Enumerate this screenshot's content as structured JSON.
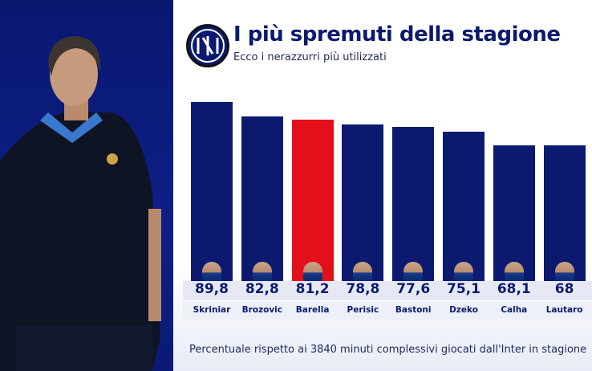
{
  "header": {
    "title": "I più spremuti della stagione",
    "subtitle": "Ecco i nerazzurri più utilizzati",
    "logo_text": "IM"
  },
  "footer": "Percentuale rispetto ai 3840 minuti complessivi giocati dall'Inter in stagione",
  "colors": {
    "bar": "#0b1a6e",
    "highlight": "#e3101b",
    "background_left": "#0d1f86"
  },
  "chart_data": {
    "type": "bar",
    "categories": [
      "Skriniar",
      "Brozovic",
      "Barella",
      "Perisic",
      "Bastoni",
      "Dzeko",
      "Calha",
      "Lautaro"
    ],
    "values": [
      89.8,
      82.8,
      81.2,
      78.8,
      77.6,
      75.1,
      68.1,
      68
    ],
    "labels": [
      "89,8",
      "82,8",
      "81,2",
      "78,8",
      "77,6",
      "75,1",
      "68,1",
      "68"
    ],
    "highlighted": "Barella",
    "title": "I più spremuti della stagione",
    "xlabel": "",
    "ylabel": "",
    "ylim": [
      0,
      100
    ],
    "grid": false
  }
}
